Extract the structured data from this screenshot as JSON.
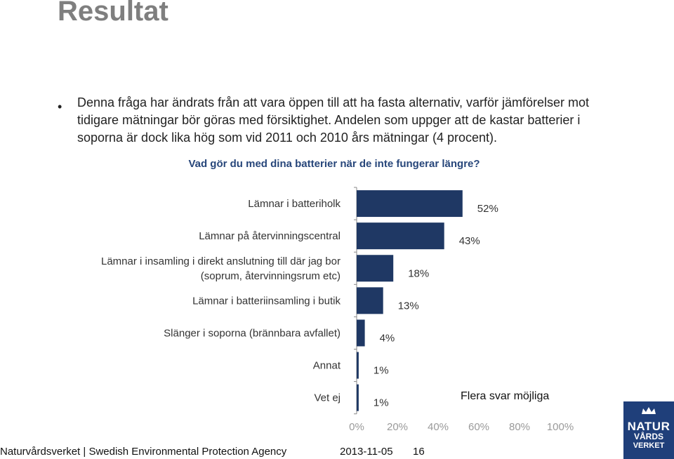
{
  "title": "Resultat",
  "bullet": "Denna fråga har ändrats från att vara öppen till att ha fasta alternativ, varför jämförelser mot tidigare mätningar bör göras med försiktighet. Andelen som uppger att de kastar batterier i soporna är dock lika hög som vid 2011 och 2010 års mätningar (4 procent).",
  "note": "Flera svar möjliga",
  "footer": {
    "org": "Naturvårdsverket | Swedish Environmental Protection Agency",
    "date": "2013-11-05",
    "page": "16"
  },
  "logo": {
    "line1": "NATUR",
    "line2": "VÅRDS",
    "line3": "VERKET"
  },
  "colors": {
    "bar": "#1f3864",
    "title": "#7f7f7f",
    "question": "#27467a",
    "logo": "#1f3f7a"
  },
  "chart_data": {
    "type": "bar",
    "orientation": "horizontal",
    "title": "Vad gör du med dina batterier när de inte fungerar längre?",
    "categories": [
      [
        "Lämnar i batteriholk"
      ],
      [
        "Lämnar på återvinningscentral"
      ],
      [
        "Lämnar i insamling i direkt anslutning till där jag bor",
        "(soprum, återvinningsrum etc)"
      ],
      [
        "Lämnar i batteriinsamling i butik"
      ],
      [
        "Slänger i soporna (brännbara avfallet)"
      ],
      [
        "Annat"
      ],
      [
        "Vet ej"
      ]
    ],
    "values": [
      52,
      43,
      18,
      13,
      4,
      1,
      1
    ],
    "value_labels": [
      "52%",
      "43%",
      "18%",
      "13%",
      "4%",
      "1%",
      "1%"
    ],
    "xlim": [
      0,
      100
    ],
    "xticks": [
      "0%",
      "20%",
      "40%",
      "60%",
      "80%",
      "100%"
    ],
    "xlabel": "",
    "ylabel": "",
    "grid": false
  }
}
